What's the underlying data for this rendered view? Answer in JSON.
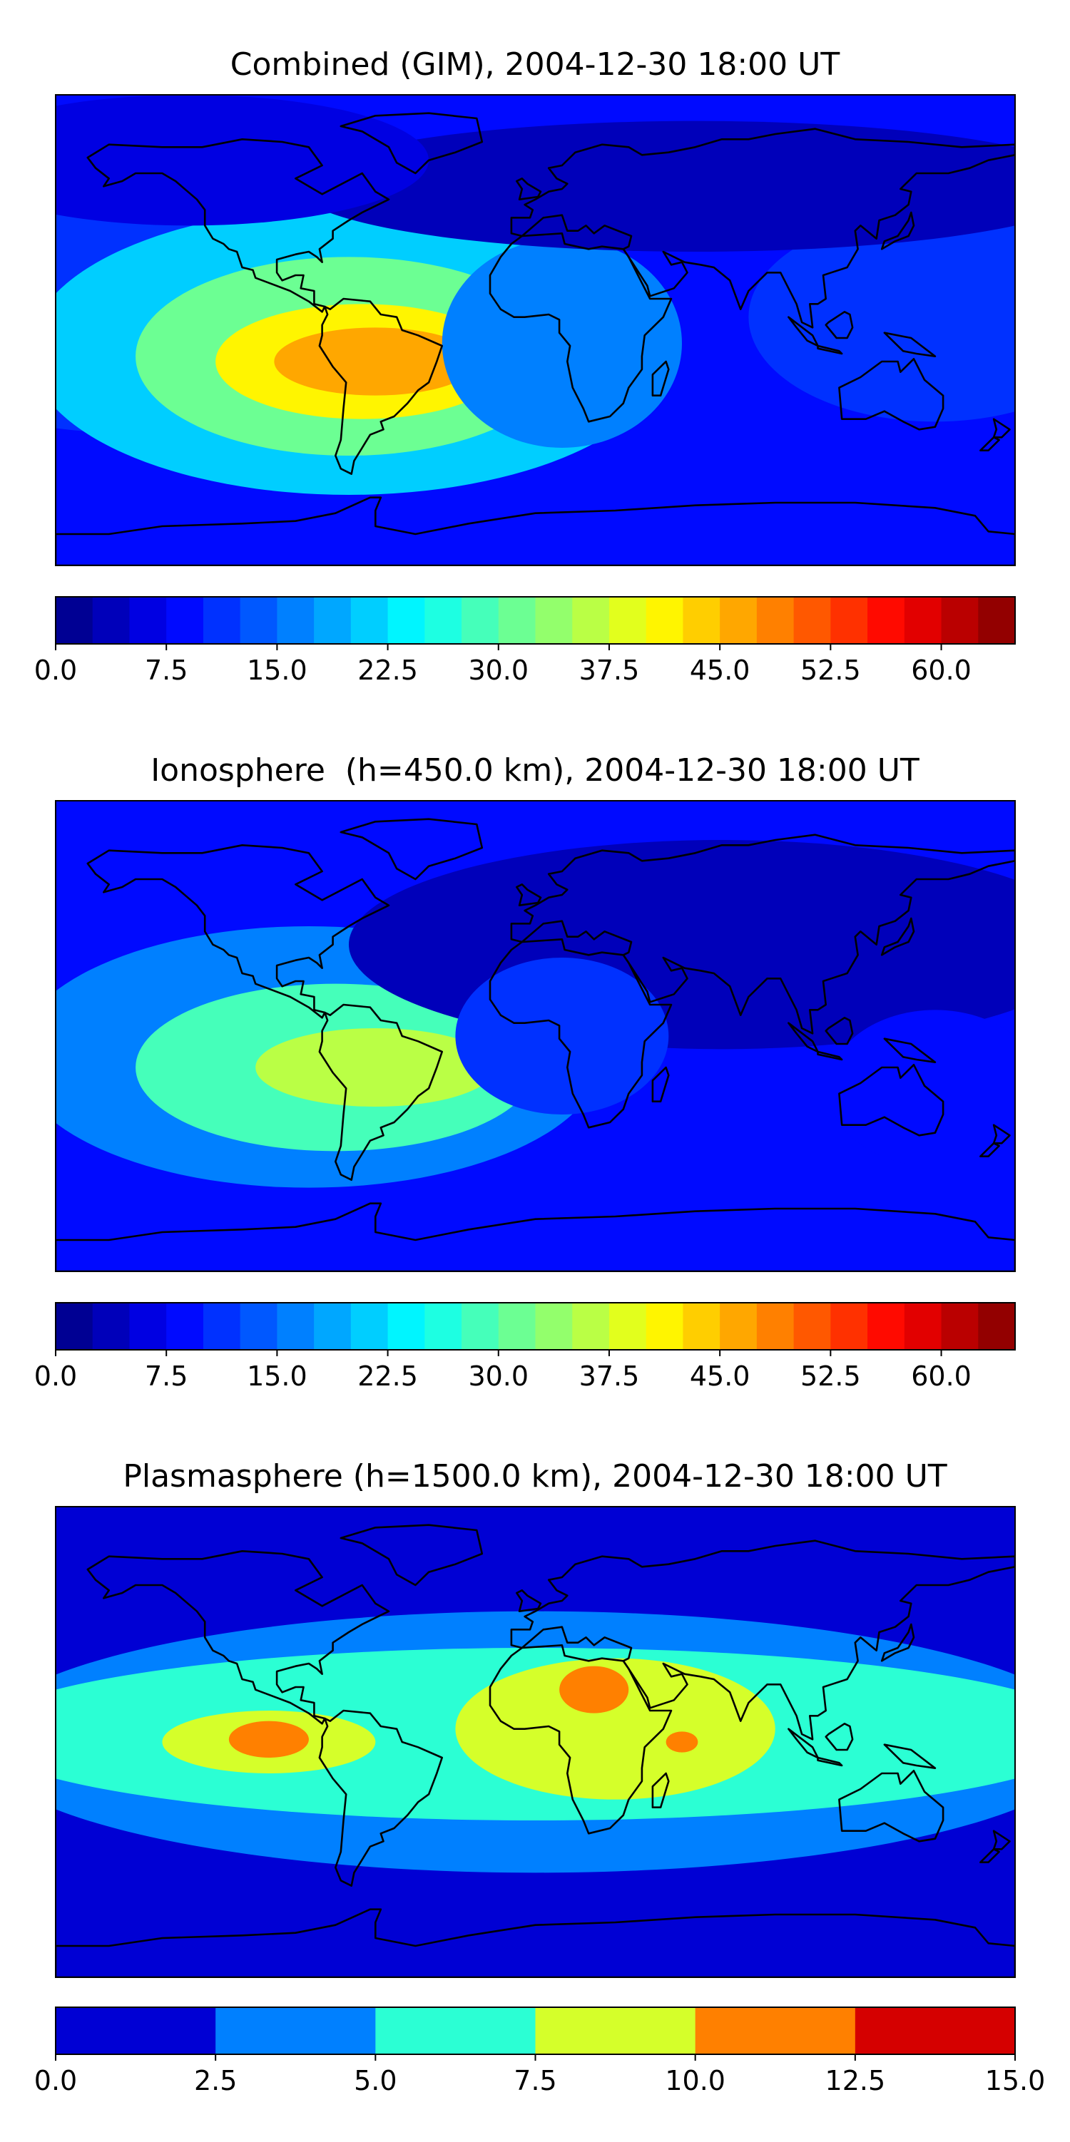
{
  "figure": {
    "description_free": true
  },
  "chart_data": [
    {
      "type": "heatmap",
      "title": "Combined (GIM), 2004-12-30 18:00 UT",
      "map": "world coastlines, equirectangular, lon -180..180, lat -90..90",
      "xlim": [
        -180,
        180
      ],
      "ylim": [
        -90,
        90
      ],
      "colorbar": {
        "min": 0.0,
        "max": 65.0,
        "step": 2.5,
        "tick_labels": [
          "0.0",
          "7.5",
          "15.0",
          "22.5",
          "30.0",
          "37.5",
          "45.0",
          "52.5",
          "60.0"
        ],
        "tick_values": [
          0,
          7.5,
          15,
          22.5,
          30,
          37.5,
          45,
          52.5,
          60
        ]
      },
      "background_value": 8,
      "features": [
        {
          "lon": -140,
          "lat": 20,
          "rx": 140,
          "ry": 60,
          "value": 10
        },
        {
          "lon": -70,
          "lat": -8,
          "rx": 120,
          "ry": 55,
          "value": 22
        },
        {
          "lon": -70,
          "lat": -10,
          "rx": 80,
          "ry": 38,
          "value": 32
        },
        {
          "lon": -65,
          "lat": -12,
          "rx": 55,
          "ry": 22,
          "value": 42
        },
        {
          "lon": -60,
          "lat": -12,
          "rx": 38,
          "ry": 13,
          "value": 47
        },
        {
          "lon": 10,
          "lat": -5,
          "rx": 45,
          "ry": 40,
          "value": 15
        },
        {
          "lon": 150,
          "lat": 5,
          "rx": 70,
          "ry": 40,
          "value": 11
        },
        {
          "lon": 60,
          "lat": 55,
          "rx": 150,
          "ry": 25,
          "value": 4
        },
        {
          "lon": -130,
          "lat": 65,
          "rx": 90,
          "ry": 25,
          "value": 6
        }
      ]
    },
    {
      "type": "heatmap",
      "title": "Ionosphere  (h=450.0 km), 2004-12-30 18:00 UT",
      "map": "world coastlines, equirectangular, lon -180..180, lat -90..90",
      "xlim": [
        -180,
        180
      ],
      "ylim": [
        -90,
        90
      ],
      "colorbar": {
        "min": 0.0,
        "max": 65.0,
        "step": 2.5,
        "tick_labels": [
          "0.0",
          "7.5",
          "15.0",
          "22.5",
          "30.0",
          "37.5",
          "45.0",
          "52.5",
          "60.0"
        ],
        "tick_values": [
          0,
          7.5,
          15,
          22.5,
          30,
          37.5,
          45,
          52.5,
          60
        ]
      },
      "background_value": 8,
      "features": [
        {
          "lon": -85,
          "lat": -8,
          "rx": 110,
          "ry": 50,
          "value": 17
        },
        {
          "lon": -75,
          "lat": -12,
          "rx": 75,
          "ry": 32,
          "value": 28
        },
        {
          "lon": -60,
          "lat": -12,
          "rx": 45,
          "ry": 15,
          "value": 36
        },
        {
          "lon": 70,
          "lat": 35,
          "rx": 140,
          "ry": 40,
          "value": 3
        },
        {
          "lon": 10,
          "lat": 0,
          "rx": 40,
          "ry": 30,
          "value": 11
        },
        {
          "lon": 150,
          "lat": -20,
          "rx": 40,
          "ry": 30,
          "value": 9
        }
      ]
    },
    {
      "type": "heatmap",
      "title": "Plasmasphere (h=1500.0 km), 2004-12-30 18:00 UT",
      "map": "world coastlines, equirectangular, lon -180..180, lat -90..90",
      "xlim": [
        -180,
        180
      ],
      "ylim": [
        -90,
        90
      ],
      "colorbar": {
        "min": 0.0,
        "max": 15.0,
        "step": 2.5,
        "tick_labels": [
          "0.0",
          "2.5",
          "5.0",
          "7.5",
          "10.0",
          "12.5",
          "15.0"
        ],
        "tick_values": [
          0,
          2.5,
          5,
          7.5,
          10,
          12.5,
          15
        ]
      },
      "background_value": 1.5,
      "features": [
        {
          "lon": 0,
          "lat": 0,
          "rx": 210,
          "ry": 50,
          "value": 4
        },
        {
          "lon": 0,
          "lat": 3,
          "rx": 210,
          "ry": 33,
          "value": 6
        },
        {
          "lon": -100,
          "lat": 0,
          "rx": 40,
          "ry": 12,
          "value": 8.5
        },
        {
          "lon": -100,
          "lat": 1,
          "rx": 15,
          "ry": 7,
          "value": 11
        },
        {
          "lon": 30,
          "lat": 5,
          "rx": 60,
          "ry": 27,
          "value": 8.5
        },
        {
          "lon": 22,
          "lat": 20,
          "rx": 13,
          "ry": 9,
          "value": 11
        },
        {
          "lon": 55,
          "lat": 0,
          "rx": 6,
          "ry": 4,
          "value": 11
        }
      ]
    }
  ]
}
